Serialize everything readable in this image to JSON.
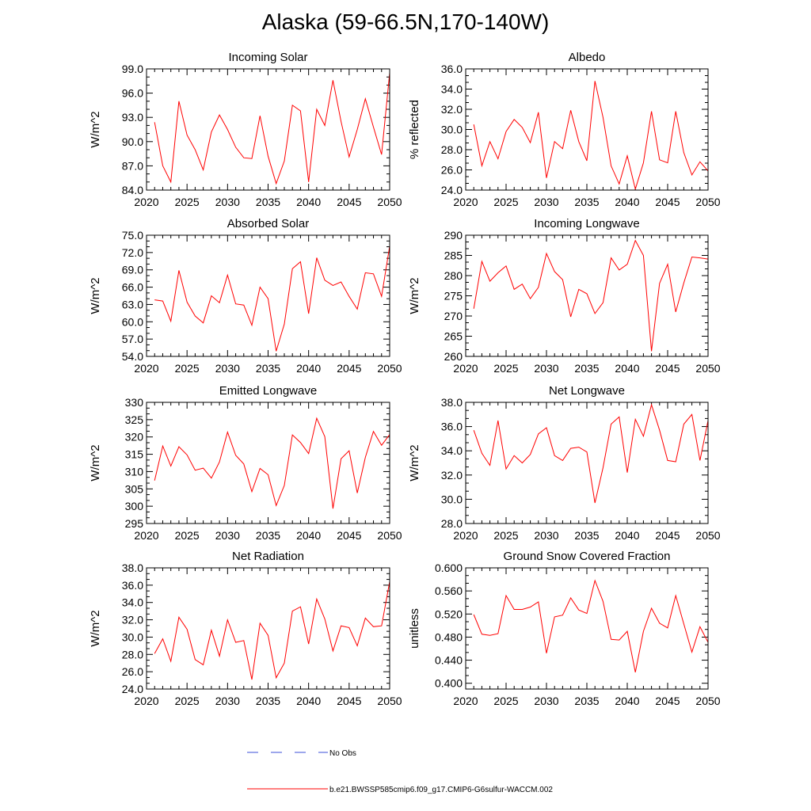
{
  "figure": {
    "title": "Alaska (59-66.5N,170-140W)",
    "legend": [
      {
        "label": "No Obs",
        "color": "#3b4fd8",
        "style": "dashed"
      },
      {
        "label": "b.e21.BWSSP585cmip6.f09_g17.CMIP6-G6sulfur-WACCM.002",
        "color": "#ff0000",
        "style": "solid"
      }
    ]
  },
  "chart_data": [
    {
      "type": "line",
      "title": "Incoming Solar",
      "xlabel": "",
      "ylabel": "W/m^2",
      "xlim": [
        2020,
        2050
      ],
      "ylim": [
        84.0,
        99.0
      ],
      "yticks": [
        84.0,
        87.0,
        90.0,
        93.0,
        96.0,
        99.0
      ],
      "ytick_labels": [
        "84.0",
        "87.0",
        "90.0",
        "93.0",
        "96.0",
        "99.0"
      ],
      "xticks": [
        2020,
        2025,
        2030,
        2035,
        2040,
        2045,
        2050
      ],
      "xtick_labels": [
        "2020",
        "2025",
        "2030",
        "2035",
        "2040",
        "2045",
        "2050"
      ],
      "x": [
        2021,
        2022,
        2023,
        2024,
        2025,
        2026,
        2027,
        2028,
        2029,
        2030,
        2031,
        2032,
        2033,
        2034,
        2035,
        2036,
        2037,
        2038,
        2039,
        2040,
        2041,
        2042,
        2043,
        2044,
        2045,
        2046,
        2047,
        2048,
        2049,
        2050
      ],
      "series": [
        {
          "color": "#ff0000",
          "values": [
            92.4,
            87.0,
            85.0,
            95.0,
            90.8,
            89.0,
            86.5,
            91.2,
            93.3,
            91.5,
            89.3,
            88.0,
            87.9,
            93.2,
            88.2,
            84.8,
            87.6,
            94.5,
            93.8,
            85.0,
            94.0,
            92.0,
            97.6,
            92.5,
            88.1,
            91.5,
            95.3,
            91.8,
            88.4,
            98.5
          ]
        }
      ]
    },
    {
      "type": "line",
      "title": "Albedo",
      "xlabel": "",
      "ylabel": "% reflected",
      "xlim": [
        2020,
        2050
      ],
      "ylim": [
        24.0,
        36.0
      ],
      "yticks": [
        24.0,
        26.0,
        28.0,
        30.0,
        32.0,
        34.0,
        36.0
      ],
      "ytick_labels": [
        "24.0",
        "26.0",
        "28.0",
        "30.0",
        "32.0",
        "34.0",
        "36.0"
      ],
      "xticks": [
        2020,
        2025,
        2030,
        2035,
        2040,
        2045,
        2050
      ],
      "xtick_labels": [
        "2020",
        "2025",
        "2030",
        "2035",
        "2040",
        "2045",
        "2050"
      ],
      "x": [
        2021,
        2022,
        2023,
        2024,
        2025,
        2026,
        2027,
        2028,
        2029,
        2030,
        2031,
        2032,
        2033,
        2034,
        2035,
        2036,
        2037,
        2038,
        2039,
        2040,
        2041,
        2042,
        2043,
        2044,
        2045,
        2046,
        2047,
        2048,
        2049,
        2050
      ],
      "series": [
        {
          "color": "#ff0000",
          "values": [
            30.5,
            26.4,
            28.8,
            27.1,
            29.8,
            31.0,
            30.2,
            28.7,
            31.7,
            25.2,
            28.8,
            28.1,
            31.9,
            28.8,
            26.9,
            34.8,
            31.2,
            26.4,
            24.6,
            27.4,
            24.1,
            26.7,
            31.8,
            27.0,
            26.7,
            31.8,
            27.7,
            25.5,
            26.8,
            25.9
          ]
        }
      ]
    },
    {
      "type": "line",
      "title": "Absorbed Solar",
      "xlabel": "",
      "ylabel": "W/m^2",
      "xlim": [
        2020,
        2050
      ],
      "ylim": [
        54.0,
        75.0
      ],
      "yticks": [
        54.0,
        57.0,
        60.0,
        63.0,
        66.0,
        69.0,
        72.0,
        75.0
      ],
      "ytick_labels": [
        "54.0",
        "57.0",
        "60.0",
        "63.0",
        "66.0",
        "69.0",
        "72.0",
        "75.0"
      ],
      "xticks": [
        2020,
        2025,
        2030,
        2035,
        2040,
        2045,
        2050
      ],
      "xtick_labels": [
        "2020",
        "2025",
        "2030",
        "2035",
        "2040",
        "2045",
        "2050"
      ],
      "x": [
        2021,
        2022,
        2023,
        2024,
        2025,
        2026,
        2027,
        2028,
        2029,
        2030,
        2031,
        2032,
        2033,
        2034,
        2035,
        2036,
        2037,
        2038,
        2039,
        2040,
        2041,
        2042,
        2043,
        2044,
        2045,
        2046,
        2047,
        2048,
        2049,
        2050
      ],
      "series": [
        {
          "color": "#ff0000",
          "values": [
            63.8,
            63.6,
            60.1,
            68.9,
            63.4,
            61.0,
            59.8,
            64.5,
            63.3,
            68.1,
            63.1,
            62.9,
            59.4,
            66.0,
            64.0,
            54.9,
            59.6,
            69.2,
            70.4,
            61.4,
            71.1,
            67.2,
            66.3,
            66.9,
            64.4,
            62.2,
            68.5,
            68.3,
            64.4,
            73.1
          ]
        }
      ]
    },
    {
      "type": "line",
      "title": "Incoming Longwave",
      "xlabel": "",
      "ylabel": "W/m^2",
      "xlim": [
        2020,
        2050
      ],
      "ylim": [
        260,
        290
      ],
      "yticks": [
        260,
        265,
        270,
        275,
        280,
        285,
        290
      ],
      "ytick_labels": [
        "260",
        "265",
        "270",
        "275",
        "280",
        "285",
        "290"
      ],
      "xticks": [
        2020,
        2025,
        2030,
        2035,
        2040,
        2045,
        2050
      ],
      "xtick_labels": [
        "2020",
        "2025",
        "2030",
        "2035",
        "2040",
        "2045",
        "2050"
      ],
      "x": [
        2021,
        2022,
        2023,
        2024,
        2025,
        2026,
        2027,
        2028,
        2029,
        2030,
        2031,
        2032,
        2033,
        2034,
        2035,
        2036,
        2037,
        2038,
        2039,
        2040,
        2041,
        2042,
        2043,
        2044,
        2045,
        2046,
        2047,
        2048,
        2049,
        2050
      ],
      "series": [
        {
          "color": "#ff0000",
          "values": [
            271.8,
            283.5,
            278.6,
            280.7,
            282.4,
            276.6,
            277.9,
            274.3,
            277.1,
            285.5,
            281.0,
            279.0,
            269.8,
            276.6,
            275.5,
            270.6,
            273.3,
            284.4,
            281.4,
            282.8,
            288.7,
            285.0,
            261.3,
            278.1,
            282.8,
            271.0,
            278.2,
            284.6,
            284.4,
            284.1
          ]
        }
      ]
    },
    {
      "type": "line",
      "title": "Emitted Longwave",
      "xlabel": "",
      "ylabel": "W/m^2",
      "xlim": [
        2020,
        2050
      ],
      "ylim": [
        295,
        330
      ],
      "yticks": [
        295,
        300,
        305,
        310,
        315,
        320,
        325,
        330
      ],
      "ytick_labels": [
        "295",
        "300",
        "305",
        "310",
        "315",
        "320",
        "325",
        "330"
      ],
      "xticks": [
        2020,
        2025,
        2030,
        2035,
        2040,
        2045,
        2050
      ],
      "xtick_labels": [
        "2020",
        "2025",
        "2030",
        "2035",
        "2040",
        "2045",
        "2050"
      ],
      "x": [
        2021,
        2022,
        2023,
        2024,
        2025,
        2026,
        2027,
        2028,
        2029,
        2030,
        2031,
        2032,
        2033,
        2034,
        2035,
        2036,
        2037,
        2038,
        2039,
        2040,
        2041,
        2042,
        2043,
        2044,
        2045,
        2046,
        2047,
        2048,
        2049,
        2050
      ],
      "series": [
        {
          "color": "#ff0000",
          "values": [
            307.4,
            317.4,
            311.6,
            317.2,
            314.8,
            310.4,
            311.0,
            308.1,
            312.8,
            321.4,
            314.7,
            312.2,
            304.2,
            310.9,
            309.1,
            300.2,
            306.0,
            320.6,
            318.4,
            315.2,
            325.4,
            320.1,
            299.3,
            313.7,
            316.0,
            303.8,
            314.1,
            321.6,
            317.6,
            320.7
          ]
        }
      ]
    },
    {
      "type": "line",
      "title": "Net Longwave",
      "xlabel": "",
      "ylabel": "W/m^2",
      "xlim": [
        2020,
        2050
      ],
      "ylim": [
        28.0,
        38.0
      ],
      "yticks": [
        28.0,
        30.0,
        32.0,
        34.0,
        36.0,
        38.0
      ],
      "ytick_labels": [
        "28.0",
        "30.0",
        "32.0",
        "34.0",
        "36.0",
        "38.0"
      ],
      "xticks": [
        2020,
        2025,
        2030,
        2035,
        2040,
        2045,
        2050
      ],
      "xtick_labels": [
        "2020",
        "2025",
        "2030",
        "2035",
        "2040",
        "2045",
        "2050"
      ],
      "x": [
        2021,
        2022,
        2023,
        2024,
        2025,
        2026,
        2027,
        2028,
        2029,
        2030,
        2031,
        2032,
        2033,
        2034,
        2035,
        2036,
        2037,
        2038,
        2039,
        2040,
        2041,
        2042,
        2043,
        2044,
        2045,
        2046,
        2047,
        2048,
        2049,
        2050
      ],
      "series": [
        {
          "color": "#ff0000",
          "values": [
            35.7,
            33.8,
            32.8,
            36.5,
            32.5,
            33.6,
            33.0,
            33.7,
            35.4,
            35.9,
            33.6,
            33.2,
            34.2,
            34.3,
            33.9,
            29.7,
            32.6,
            36.2,
            36.8,
            32.2,
            36.6,
            35.2,
            37.8,
            35.7,
            33.2,
            33.1,
            36.2,
            37.0,
            33.2,
            36.5
          ]
        }
      ]
    },
    {
      "type": "line",
      "title": "Net Radiation",
      "xlabel": "",
      "ylabel": "W/m^2",
      "xlim": [
        2020,
        2050
      ],
      "ylim": [
        24.0,
        38.0
      ],
      "yticks": [
        24.0,
        26.0,
        28.0,
        30.0,
        32.0,
        34.0,
        36.0,
        38.0
      ],
      "ytick_labels": [
        "24.0",
        "26.0",
        "28.0",
        "30.0",
        "32.0",
        "34.0",
        "36.0",
        "38.0"
      ],
      "xticks": [
        2020,
        2025,
        2030,
        2035,
        2040,
        2045,
        2050
      ],
      "xtick_labels": [
        "2020",
        "2025",
        "2030",
        "2035",
        "2040",
        "2045",
        "2050"
      ],
      "x": [
        2021,
        2022,
        2023,
        2024,
        2025,
        2026,
        2027,
        2028,
        2029,
        2030,
        2031,
        2032,
        2033,
        2034,
        2035,
        2036,
        2037,
        2038,
        2039,
        2040,
        2041,
        2042,
        2043,
        2044,
        2045,
        2046,
        2047,
        2048,
        2049,
        2050
      ],
      "series": [
        {
          "color": "#ff0000",
          "values": [
            28.1,
            29.8,
            27.2,
            32.3,
            30.9,
            27.4,
            26.8,
            30.8,
            27.8,
            32.0,
            29.4,
            29.6,
            25.1,
            31.6,
            30.2,
            25.3,
            27.0,
            33.0,
            33.5,
            29.2,
            34.4,
            32.1,
            28.4,
            31.3,
            31.1,
            29.0,
            32.2,
            31.2,
            31.3,
            36.4
          ]
        }
      ]
    },
    {
      "type": "line",
      "title": "Ground Snow Covered Fraction",
      "xlabel": "",
      "ylabel": "unitless",
      "xlim": [
        2020,
        2050
      ],
      "ylim": [
        0.39,
        0.6
      ],
      "yticks": [
        0.4,
        0.44,
        0.48,
        0.52,
        0.56,
        0.6
      ],
      "ytick_labels": [
        "0.400",
        "0.440",
        "0.480",
        "0.520",
        "0.560",
        "0.600"
      ],
      "xticks": [
        2020,
        2025,
        2030,
        2035,
        2040,
        2045,
        2050
      ],
      "xtick_labels": [
        "2020",
        "2025",
        "2030",
        "2035",
        "2040",
        "2045",
        "2050"
      ],
      "x": [
        2021,
        2022,
        2023,
        2024,
        2025,
        2026,
        2027,
        2028,
        2029,
        2030,
        2031,
        2032,
        2033,
        2034,
        2035,
        2036,
        2037,
        2038,
        2039,
        2040,
        2041,
        2042,
        2043,
        2044,
        2045,
        2046,
        2047,
        2048,
        2049,
        2050
      ],
      "series": [
        {
          "color": "#ff0000",
          "values": [
            0.519,
            0.485,
            0.483,
            0.486,
            0.552,
            0.528,
            0.528,
            0.532,
            0.541,
            0.452,
            0.515,
            0.518,
            0.548,
            0.527,
            0.521,
            0.578,
            0.542,
            0.476,
            0.475,
            0.49,
            0.419,
            0.49,
            0.53,
            0.504,
            0.496,
            0.552,
            0.503,
            0.454,
            0.498,
            0.471
          ]
        }
      ]
    }
  ]
}
